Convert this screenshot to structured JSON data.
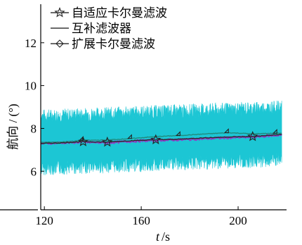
{
  "chart_data": {
    "type": "line",
    "ylabel": "航向 / (°)",
    "xlabel_italic": "t",
    "xlabel_unit": "/s",
    "xlim": [
      118.5,
      220
    ],
    "ylim": [
      4.2,
      13.8
    ],
    "xticks": [
      120,
      160,
      200
    ],
    "yticks": [
      6,
      8,
      10,
      12
    ],
    "grid": false,
    "legend_position": "top-left",
    "noise_band": {
      "color": "#1cc6d4",
      "x_range": [
        118.5,
        218
      ],
      "center_start": 7.35,
      "center_end": 7.75,
      "amplitude": 1.55
    },
    "series": [
      {
        "name": "自适应卡尔曼滤波",
        "color": "#2a2a2a",
        "marker": "star",
        "points": [
          {
            "x": 118.5,
            "y": 7.3
          },
          {
            "x": 126,
            "y": 7.32
          },
          {
            "x": 136,
            "y": 7.38
          },
          {
            "x": 146,
            "y": 7.36
          },
          {
            "x": 156,
            "y": 7.43
          },
          {
            "x": 166,
            "y": 7.47
          },
          {
            "x": 176,
            "y": 7.5
          },
          {
            "x": 186,
            "y": 7.56
          },
          {
            "x": 196,
            "y": 7.6
          },
          {
            "x": 206,
            "y": 7.62
          },
          {
            "x": 218,
            "y": 7.72
          }
        ],
        "marker_x": [
          136,
          146,
          166,
          206
        ]
      },
      {
        "name": "互补滤波器",
        "color": "#8a44c8",
        "marker": "none",
        "points": [
          {
            "x": 118.5,
            "y": 7.3
          },
          {
            "x": 126,
            "y": 7.33
          },
          {
            "x": 136,
            "y": 7.36
          },
          {
            "x": 146,
            "y": 7.33
          },
          {
            "x": 156,
            "y": 7.4
          },
          {
            "x": 166,
            "y": 7.45
          },
          {
            "x": 176,
            "y": 7.47
          },
          {
            "x": 186,
            "y": 7.52
          },
          {
            "x": 196,
            "y": 7.57
          },
          {
            "x": 206,
            "y": 7.6
          },
          {
            "x": 218,
            "y": 7.7
          }
        ]
      },
      {
        "name": "扩展卡尔曼滤波",
        "color": "#1f8b7e",
        "marker": "diamond",
        "points": [
          {
            "x": 118.5,
            "y": 7.35
          },
          {
            "x": 126,
            "y": 7.36
          },
          {
            "x": 136,
            "y": 7.44
          },
          {
            "x": 146,
            "y": 7.46
          },
          {
            "x": 156,
            "y": 7.53
          },
          {
            "x": 166,
            "y": 7.62
          },
          {
            "x": 176,
            "y": 7.67
          },
          {
            "x": 186,
            "y": 7.74
          },
          {
            "x": 196,
            "y": 7.8
          },
          {
            "x": 206,
            "y": 7.75
          },
          {
            "x": 218,
            "y": 7.78
          }
        ],
        "marker_x": [
          136,
          156,
          176,
          196,
          216
        ]
      }
    ]
  }
}
